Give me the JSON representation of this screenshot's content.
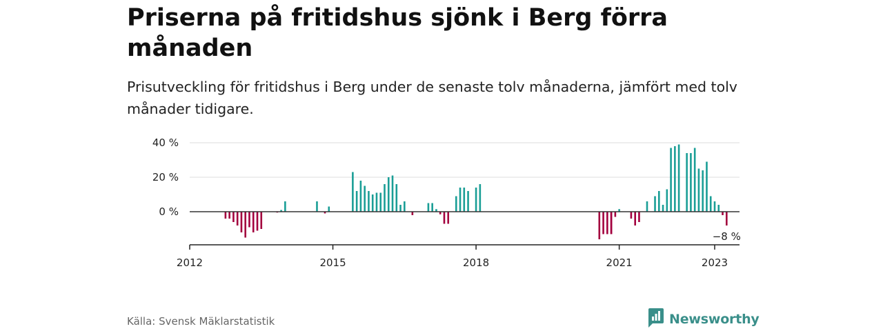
{
  "title": "Priserna på fritidshus sjönk i Berg förra månaden",
  "subtitle": "Prisutveckling för fritidshus i Berg under de senaste tolv månaderna, jämfört med tolv månader tidigare.",
  "source": "Källa: Svensk Mäklarstatistik",
  "brand": {
    "name": "Newsworthy",
    "icon": "newsworthy-logo-icon",
    "color": "#3a8f8a"
  },
  "colors": {
    "positive": "#1a9e96",
    "negative": "#a3003e",
    "grid": "#dddddd",
    "axis": "#222222"
  },
  "chart_data": {
    "type": "bar",
    "ylim": [
      -18,
      42
    ],
    "y_ticks": [
      {
        "value": 0,
        "label": "0 %"
      },
      {
        "value": 20,
        "label": "20 %"
      },
      {
        "value": 40,
        "label": "40 %"
      }
    ],
    "x_ticks": [
      {
        "value": "2012-01",
        "label": "2012"
      },
      {
        "value": "2015-01",
        "label": "2015"
      },
      {
        "value": "2018-01",
        "label": "2018"
      },
      {
        "value": "2021-01",
        "label": "2021"
      },
      {
        "value": "2023-01",
        "label": "2023"
      }
    ],
    "xlim": [
      "2012-01",
      "2023-07"
    ],
    "series": [
      {
        "points": [
          {
            "x": "2012-10",
            "y": -4
          },
          {
            "x": "2012-11",
            "y": -4
          },
          {
            "x": "2012-12",
            "y": -6
          },
          {
            "x": "2013-01",
            "y": -8
          },
          {
            "x": "2013-02",
            "y": -12
          },
          {
            "x": "2013-03",
            "y": -15
          },
          {
            "x": "2013-04",
            "y": -9
          },
          {
            "x": "2013-05",
            "y": -12
          },
          {
            "x": "2013-06",
            "y": -11
          },
          {
            "x": "2013-07",
            "y": -10
          },
          {
            "x": "2013-11",
            "y": -0.5
          },
          {
            "x": "2013-12",
            "y": 1
          },
          {
            "x": "2014-01",
            "y": 6
          },
          {
            "x": "2014-09",
            "y": 6
          },
          {
            "x": "2014-11",
            "y": -1
          },
          {
            "x": "2014-12",
            "y": 3
          },
          {
            "x": "2015-06",
            "y": 23
          },
          {
            "x": "2015-07",
            "y": 12
          },
          {
            "x": "2015-08",
            "y": 18
          },
          {
            "x": "2015-09",
            "y": 15
          },
          {
            "x": "2015-10",
            "y": 12
          },
          {
            "x": "2015-11",
            "y": 10
          },
          {
            "x": "2015-12",
            "y": 11
          },
          {
            "x": "2016-01",
            "y": 11
          },
          {
            "x": "2016-02",
            "y": 16
          },
          {
            "x": "2016-03",
            "y": 20
          },
          {
            "x": "2016-04",
            "y": 21
          },
          {
            "x": "2016-05",
            "y": 16
          },
          {
            "x": "2016-06",
            "y": 4
          },
          {
            "x": "2016-07",
            "y": 6
          },
          {
            "x": "2016-09",
            "y": -2
          },
          {
            "x": "2017-01",
            "y": 5
          },
          {
            "x": "2017-02",
            "y": 5
          },
          {
            "x": "2017-03",
            "y": 1.5
          },
          {
            "x": "2017-04",
            "y": -1.5
          },
          {
            "x": "2017-05",
            "y": -7
          },
          {
            "x": "2017-06",
            "y": -7
          },
          {
            "x": "2017-08",
            "y": 9
          },
          {
            "x": "2017-09",
            "y": 14
          },
          {
            "x": "2017-10",
            "y": 14
          },
          {
            "x": "2017-11",
            "y": 12
          },
          {
            "x": "2018-01",
            "y": 14
          },
          {
            "x": "2018-02",
            "y": 16
          },
          {
            "x": "2020-08",
            "y": -16
          },
          {
            "x": "2020-09",
            "y": -13
          },
          {
            "x": "2020-10",
            "y": -13
          },
          {
            "x": "2020-11",
            "y": -13
          },
          {
            "x": "2020-12",
            "y": -3
          },
          {
            "x": "2021-01",
            "y": 1.5
          },
          {
            "x": "2020-11",
            "y": -13
          },
          {
            "x": "2021-04",
            "y": -4
          },
          {
            "x": "2021-05",
            "y": -8
          },
          {
            "x": "2021-06",
            "y": -6
          },
          {
            "x": "2021-08",
            "y": 6
          },
          {
            "x": "2021-10",
            "y": 9
          },
          {
            "x": "2021-11",
            "y": 12
          },
          {
            "x": "2021-12",
            "y": 4
          },
          {
            "x": "2022-01",
            "y": 13
          },
          {
            "x": "2022-02",
            "y": 37
          },
          {
            "x": "2022-03",
            "y": 38
          },
          {
            "x": "2022-04",
            "y": 39
          },
          {
            "x": "2022-06",
            "y": 34
          },
          {
            "x": "2022-07",
            "y": 34
          },
          {
            "x": "2022-08",
            "y": 37
          },
          {
            "x": "2022-09",
            "y": 25
          },
          {
            "x": "2022-10",
            "y": 24
          },
          {
            "x": "2022-11",
            "y": 29
          },
          {
            "x": "2022-12",
            "y": 9
          },
          {
            "x": "2023-01",
            "y": 6
          },
          {
            "x": "2023-02",
            "y": 4
          },
          {
            "x": "2023-03",
            "y": -2
          },
          {
            "x": "2023-04",
            "y": -8
          }
        ]
      }
    ],
    "annotations": [
      {
        "x": "2023-04",
        "text": "−8 %"
      }
    ]
  }
}
